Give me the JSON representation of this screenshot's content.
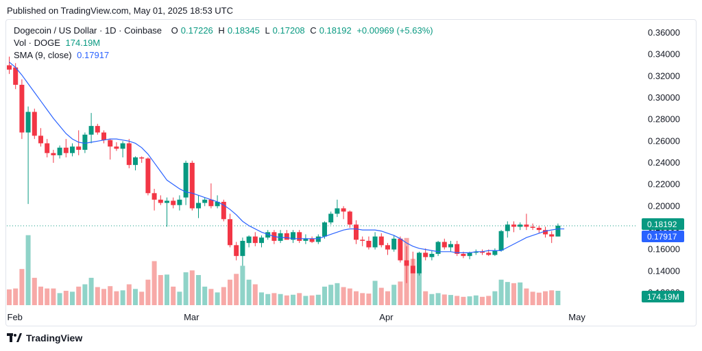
{
  "published": "Published on TradingView.com, May 01, 2025 18:53 UTC",
  "legend": {
    "symbol": "Dogecoin / US Dollar · 1D · Coinbase",
    "open_label": "O",
    "open": "0.17226",
    "high_label": "H",
    "high": "0.18345",
    "low_label": "L",
    "low": "0.17208",
    "close_label": "C",
    "close": "0.18192",
    "change": "+0.00969 (+5.63%)",
    "vol_label": "Vol · DOGE",
    "vol": "174.19M",
    "sma_label": "SMA (9, close)",
    "sma": "0.17917"
  },
  "footer": {
    "brand": "TradingView",
    "logo_icon": "tradingview-logo-icon"
  },
  "colors": {
    "up": "#089981",
    "down": "#f23645",
    "up_vol": "#8fd3c8",
    "down_vol": "#f7a9a7",
    "sma": "#2962ff"
  },
  "chart_data": {
    "type": "candlestick",
    "ylim": [
      0.12,
      0.365
    ],
    "yticks": [
      "0.36000",
      "0.34000",
      "0.32000",
      "0.30000",
      "0.28000",
      "0.26000",
      "0.24000",
      "0.22000",
      "0.20000",
      "0.18000",
      "0.16000",
      "0.14000",
      "0.12000"
    ],
    "xticks": [
      {
        "label": "Feb",
        "index": 0
      },
      {
        "label": "Mar",
        "index": 28
      },
      {
        "label": "Apr",
        "index": 59
      },
      {
        "label": "May",
        "index": 89
      }
    ],
    "last_price": "0.18192",
    "sma_value": "0.17917",
    "volume_value": "174.19M",
    "candles": [
      {
        "o": 0.33,
        "h": 0.338,
        "l": 0.322,
        "c": 0.326,
        "v": 68
      },
      {
        "o": 0.328,
        "h": 0.332,
        "l": 0.308,
        "c": 0.312,
        "v": 72
      },
      {
        "o": 0.312,
        "h": 0.317,
        "l": 0.262,
        "c": 0.268,
        "v": 156
      },
      {
        "o": 0.268,
        "h": 0.292,
        "l": 0.202,
        "c": 0.287,
        "v": 302
      },
      {
        "o": 0.287,
        "h": 0.29,
        "l": 0.262,
        "c": 0.265,
        "v": 118
      },
      {
        "o": 0.265,
        "h": 0.272,
        "l": 0.255,
        "c": 0.258,
        "v": 80
      },
      {
        "o": 0.258,
        "h": 0.262,
        "l": 0.245,
        "c": 0.249,
        "v": 72
      },
      {
        "o": 0.249,
        "h": 0.252,
        "l": 0.24,
        "c": 0.247,
        "v": 72
      },
      {
        "o": 0.247,
        "h": 0.256,
        "l": 0.244,
        "c": 0.254,
        "v": 52
      },
      {
        "o": 0.254,
        "h": 0.262,
        "l": 0.245,
        "c": 0.249,
        "v": 62
      },
      {
        "o": 0.249,
        "h": 0.258,
        "l": 0.246,
        "c": 0.255,
        "v": 58
      },
      {
        "o": 0.255,
        "h": 0.27,
        "l": 0.247,
        "c": 0.252,
        "v": 80
      },
      {
        "o": 0.252,
        "h": 0.268,
        "l": 0.249,
        "c": 0.266,
        "v": 90
      },
      {
        "o": 0.266,
        "h": 0.286,
        "l": 0.258,
        "c": 0.274,
        "v": 118
      },
      {
        "o": 0.274,
        "h": 0.276,
        "l": 0.266,
        "c": 0.268,
        "v": 78
      },
      {
        "o": 0.268,
        "h": 0.27,
        "l": 0.258,
        "c": 0.261,
        "v": 70
      },
      {
        "o": 0.261,
        "h": 0.262,
        "l": 0.243,
        "c": 0.255,
        "v": 82
      },
      {
        "o": 0.255,
        "h": 0.259,
        "l": 0.251,
        "c": 0.253,
        "v": 60
      },
      {
        "o": 0.253,
        "h": 0.26,
        "l": 0.245,
        "c": 0.258,
        "v": 64
      },
      {
        "o": 0.258,
        "h": 0.262,
        "l": 0.235,
        "c": 0.238,
        "v": 90
      },
      {
        "o": 0.238,
        "h": 0.246,
        "l": 0.233,
        "c": 0.245,
        "v": 70
      },
      {
        "o": 0.245,
        "h": 0.246,
        "l": 0.24,
        "c": 0.244,
        "v": 58
      },
      {
        "o": 0.244,
        "h": 0.245,
        "l": 0.21,
        "c": 0.212,
        "v": 110
      },
      {
        "o": 0.212,
        "h": 0.216,
        "l": 0.196,
        "c": 0.206,
        "v": 190
      },
      {
        "o": 0.206,
        "h": 0.21,
        "l": 0.201,
        "c": 0.203,
        "v": 130
      },
      {
        "o": 0.203,
        "h": 0.208,
        "l": 0.181,
        "c": 0.205,
        "v": 132
      },
      {
        "o": 0.205,
        "h": 0.208,
        "l": 0.198,
        "c": 0.201,
        "v": 80
      },
      {
        "o": 0.201,
        "h": 0.21,
        "l": 0.196,
        "c": 0.206,
        "v": 58
      },
      {
        "o": 0.208,
        "h": 0.242,
        "l": 0.201,
        "c": 0.24,
        "v": 142
      },
      {
        "o": 0.24,
        "h": 0.242,
        "l": 0.196,
        "c": 0.198,
        "v": 150
      },
      {
        "o": 0.198,
        "h": 0.21,
        "l": 0.189,
        "c": 0.203,
        "v": 130
      },
      {
        "o": 0.203,
        "h": 0.208,
        "l": 0.2,
        "c": 0.206,
        "v": 80
      },
      {
        "o": 0.206,
        "h": 0.221,
        "l": 0.198,
        "c": 0.2,
        "v": 70
      },
      {
        "o": 0.2,
        "h": 0.21,
        "l": 0.198,
        "c": 0.204,
        "v": 55
      },
      {
        "o": 0.204,
        "h": 0.206,
        "l": 0.186,
        "c": 0.188,
        "v": 78
      },
      {
        "o": 0.188,
        "h": 0.193,
        "l": 0.162,
        "c": 0.164,
        "v": 110
      },
      {
        "o": 0.164,
        "h": 0.167,
        "l": 0.15,
        "c": 0.154,
        "v": 135
      },
      {
        "o": 0.154,
        "h": 0.171,
        "l": 0.145,
        "c": 0.168,
        "v": 170
      },
      {
        "o": 0.166,
        "h": 0.173,
        "l": 0.162,
        "c": 0.172,
        "v": 110
      },
      {
        "o": 0.172,
        "h": 0.176,
        "l": 0.163,
        "c": 0.166,
        "v": 90
      },
      {
        "o": 0.166,
        "h": 0.173,
        "l": 0.162,
        "c": 0.171,
        "v": 55
      },
      {
        "o": 0.171,
        "h": 0.178,
        "l": 0.169,
        "c": 0.176,
        "v": 48
      },
      {
        "o": 0.176,
        "h": 0.178,
        "l": 0.165,
        "c": 0.168,
        "v": 52
      },
      {
        "o": 0.168,
        "h": 0.178,
        "l": 0.166,
        "c": 0.175,
        "v": 48
      },
      {
        "o": 0.175,
        "h": 0.178,
        "l": 0.17,
        "c": 0.169,
        "v": 42
      },
      {
        "o": 0.169,
        "h": 0.178,
        "l": 0.166,
        "c": 0.176,
        "v": 45
      },
      {
        "o": 0.176,
        "h": 0.178,
        "l": 0.166,
        "c": 0.168,
        "v": 52
      },
      {
        "o": 0.168,
        "h": 0.174,
        "l": 0.165,
        "c": 0.17,
        "v": 40
      },
      {
        "o": 0.17,
        "h": 0.172,
        "l": 0.166,
        "c": 0.167,
        "v": 42
      },
      {
        "o": 0.167,
        "h": 0.174,
        "l": 0.165,
        "c": 0.172,
        "v": 45
      },
      {
        "o": 0.172,
        "h": 0.186,
        "l": 0.17,
        "c": 0.185,
        "v": 80
      },
      {
        "o": 0.185,
        "h": 0.195,
        "l": 0.183,
        "c": 0.193,
        "v": 88
      },
      {
        "o": 0.193,
        "h": 0.206,
        "l": 0.19,
        "c": 0.198,
        "v": 95
      },
      {
        "o": 0.198,
        "h": 0.2,
        "l": 0.188,
        "c": 0.195,
        "v": 78
      },
      {
        "o": 0.195,
        "h": 0.196,
        "l": 0.18,
        "c": 0.183,
        "v": 72
      },
      {
        "o": 0.183,
        "h": 0.187,
        "l": 0.165,
        "c": 0.169,
        "v": 60
      },
      {
        "o": 0.169,
        "h": 0.172,
        "l": 0.163,
        "c": 0.168,
        "v": 52
      },
      {
        "o": 0.168,
        "h": 0.172,
        "l": 0.16,
        "c": 0.162,
        "v": 50
      },
      {
        "o": 0.162,
        "h": 0.176,
        "l": 0.16,
        "c": 0.172,
        "v": 105
      },
      {
        "o": 0.172,
        "h": 0.175,
        "l": 0.162,
        "c": 0.164,
        "v": 75
      },
      {
        "o": 0.164,
        "h": 0.166,
        "l": 0.155,
        "c": 0.16,
        "v": 60
      },
      {
        "o": 0.16,
        "h": 0.173,
        "l": 0.158,
        "c": 0.17,
        "v": 88
      },
      {
        "o": 0.17,
        "h": 0.172,
        "l": 0.148,
        "c": 0.15,
        "v": 102
      },
      {
        "o": 0.15,
        "h": 0.163,
        "l": 0.129,
        "c": 0.145,
        "v": 290
      },
      {
        "o": 0.145,
        "h": 0.158,
        "l": 0.138,
        "c": 0.138,
        "v": 200
      },
      {
        "o": 0.138,
        "h": 0.158,
        "l": 0.136,
        "c": 0.157,
        "v": 150
      },
      {
        "o": 0.157,
        "h": 0.161,
        "l": 0.15,
        "c": 0.153,
        "v": 60
      },
      {
        "o": 0.153,
        "h": 0.159,
        "l": 0.15,
        "c": 0.156,
        "v": 48
      },
      {
        "o": 0.156,
        "h": 0.168,
        "l": 0.154,
        "c": 0.167,
        "v": 52
      },
      {
        "o": 0.167,
        "h": 0.17,
        "l": 0.16,
        "c": 0.162,
        "v": 46
      },
      {
        "o": 0.162,
        "h": 0.168,
        "l": 0.158,
        "c": 0.165,
        "v": 44
      },
      {
        "o": 0.165,
        "h": 0.168,
        "l": 0.154,
        "c": 0.156,
        "v": 40
      },
      {
        "o": 0.156,
        "h": 0.158,
        "l": 0.152,
        "c": 0.154,
        "v": 36
      },
      {
        "o": 0.154,
        "h": 0.158,
        "l": 0.151,
        "c": 0.157,
        "v": 38
      },
      {
        "o": 0.157,
        "h": 0.16,
        "l": 0.155,
        "c": 0.158,
        "v": 42
      },
      {
        "o": 0.158,
        "h": 0.16,
        "l": 0.155,
        "c": 0.157,
        "v": 36
      },
      {
        "o": 0.157,
        "h": 0.16,
        "l": 0.154,
        "c": 0.155,
        "v": 40
      },
      {
        "o": 0.155,
        "h": 0.161,
        "l": 0.154,
        "c": 0.159,
        "v": 60
      },
      {
        "o": 0.159,
        "h": 0.178,
        "l": 0.158,
        "c": 0.177,
        "v": 110
      },
      {
        "o": 0.177,
        "h": 0.186,
        "l": 0.171,
        "c": 0.183,
        "v": 100
      },
      {
        "o": 0.183,
        "h": 0.186,
        "l": 0.176,
        "c": 0.181,
        "v": 95
      },
      {
        "o": 0.181,
        "h": 0.185,
        "l": 0.178,
        "c": 0.183,
        "v": 98
      },
      {
        "o": 0.183,
        "h": 0.193,
        "l": 0.178,
        "c": 0.181,
        "v": 72
      },
      {
        "o": 0.181,
        "h": 0.184,
        "l": 0.178,
        "c": 0.18,
        "v": 58
      },
      {
        "o": 0.18,
        "h": 0.182,
        "l": 0.175,
        "c": 0.178,
        "v": 54
      },
      {
        "o": 0.178,
        "h": 0.181,
        "l": 0.171,
        "c": 0.174,
        "v": 60
      },
      {
        "o": 0.174,
        "h": 0.177,
        "l": 0.166,
        "c": 0.172,
        "v": 64
      },
      {
        "o": 0.172,
        "h": 0.184,
        "l": 0.172,
        "c": 0.182,
        "v": 62
      }
    ],
    "sma": [
      0.333,
      0.328,
      0.321,
      0.313,
      0.305,
      0.297,
      0.289,
      0.281,
      0.274,
      0.267,
      0.262,
      0.259,
      0.258,
      0.259,
      0.26,
      0.261,
      0.262,
      0.262,
      0.261,
      0.26,
      0.258,
      0.254,
      0.248,
      0.24,
      0.232,
      0.224,
      0.22,
      0.216,
      0.213,
      0.212,
      0.21,
      0.208,
      0.206,
      0.204,
      0.201,
      0.197,
      0.192,
      0.186,
      0.182,
      0.179,
      0.176,
      0.174,
      0.172,
      0.171,
      0.171,
      0.17,
      0.17,
      0.17,
      0.17,
      0.17,
      0.172,
      0.174,
      0.176,
      0.178,
      0.179,
      0.179,
      0.178,
      0.178,
      0.178,
      0.177,
      0.175,
      0.173,
      0.17,
      0.166,
      0.163,
      0.161,
      0.16,
      0.159,
      0.158,
      0.158,
      0.158,
      0.157,
      0.157,
      0.157,
      0.158,
      0.158,
      0.159,
      0.159,
      0.159,
      0.162,
      0.165,
      0.168,
      0.171,
      0.173,
      0.175,
      0.177,
      0.178,
      0.179,
      0.179
    ]
  }
}
